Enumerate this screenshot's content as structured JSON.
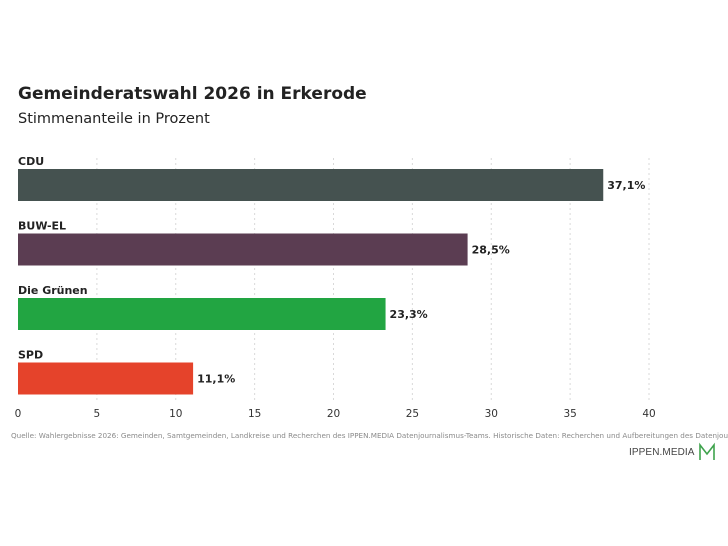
{
  "header": {
    "title": "Gemeinderatswahl 2026 in Erkerode",
    "subtitle": "Stimmenanteile in Prozent"
  },
  "chart_data": {
    "type": "bar",
    "orientation": "horizontal",
    "categories": [
      "CDU",
      "BUW-EL",
      "Die Grünen",
      "SPD"
    ],
    "values": [
      37.1,
      28.5,
      23.3,
      11.1
    ],
    "value_labels": [
      "37,1%",
      "28,5%",
      "23,3%",
      "11,1%"
    ],
    "colors": [
      "#455250",
      "#5b3d52",
      "#22a542",
      "#e5432b"
    ],
    "title": "Gemeinderatswahl 2026 in Erkerode",
    "subtitle": "Stimmenanteile in Prozent",
    "xlim": [
      0,
      40
    ],
    "x_ticks": [
      0,
      5,
      10,
      15,
      20,
      25,
      30,
      35,
      40
    ],
    "grid": true,
    "legend": "none"
  },
  "footer": {
    "source": "Quelle: Wahlergebnisse 2026: Gemeinden, Samtgemeinden, Landkreise und Recherchen des IPPEN.MEDIA Datenjournalismus-Teams. Historische Daten: Recherchen und Aufbereitungen des Datenjournalismus-Teams",
    "logo_text": "IPPEN.MEDIA",
    "logo_color": "#3fa34d"
  }
}
